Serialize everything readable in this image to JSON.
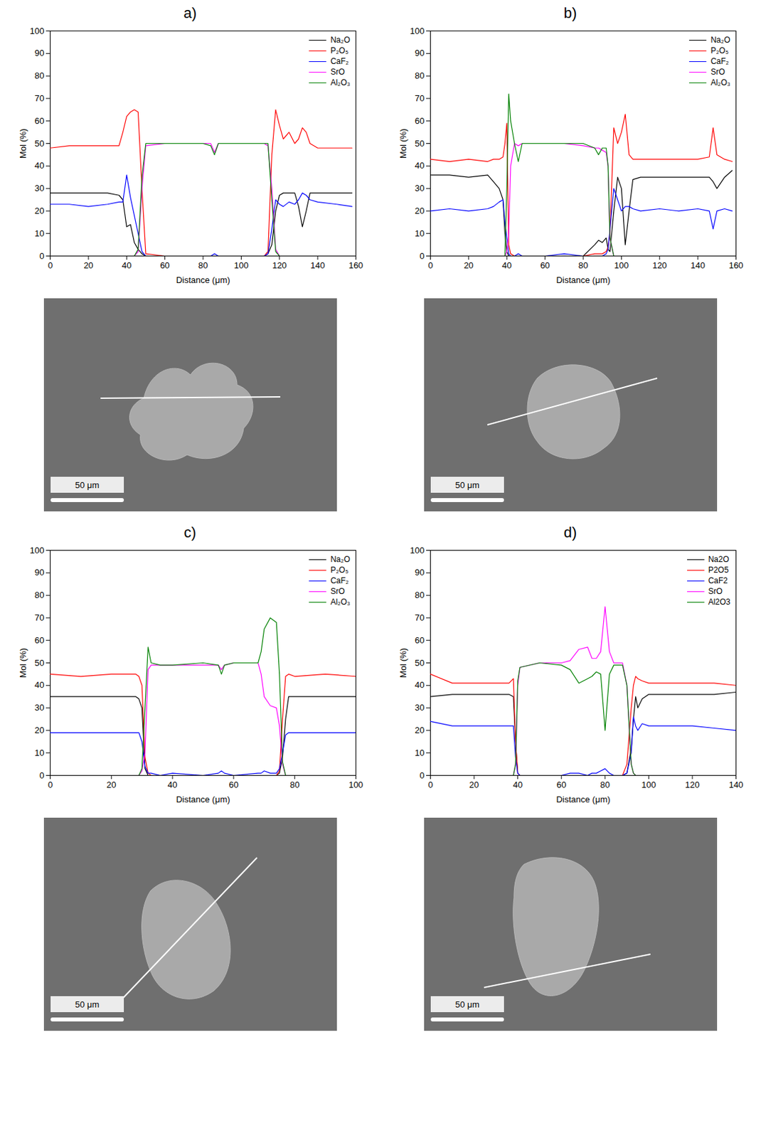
{
  "chart_data": [
    {
      "type": "line",
      "title": "a)",
      "xlabel": "Distance (μm)",
      "ylabel": "Mol (%)",
      "legend": "top-right",
      "xlim": [
        0,
        160
      ],
      "xticks": [
        0,
        20,
        40,
        60,
        80,
        100,
        120,
        140,
        160
      ],
      "ylim": [
        0,
        100
      ],
      "yticks": [
        0,
        10,
        20,
        30,
        40,
        50,
        60,
        70,
        80,
        90,
        100
      ],
      "x": [
        0,
        10,
        20,
        30,
        36,
        38,
        40,
        42,
        44,
        46,
        48,
        50,
        60,
        70,
        80,
        84,
        86,
        88,
        100,
        110,
        112,
        114,
        116,
        118,
        120,
        122,
        125,
        128,
        130,
        132,
        134,
        136,
        140,
        150,
        158
      ],
      "series": [
        {
          "name": "Na₂O",
          "color": "#000000",
          "values": [
            28,
            28,
            28,
            28,
            27,
            25,
            13,
            14,
            6,
            3,
            1,
            0,
            0,
            0,
            0,
            0,
            0,
            0,
            0,
            0,
            0,
            1,
            5,
            20,
            27,
            28,
            28,
            28,
            22,
            13,
            20,
            28,
            28,
            28,
            28
          ]
        },
        {
          "name": "P₂O₅",
          "color": "#ff0000",
          "values": [
            48,
            49,
            49,
            49,
            49,
            55,
            62,
            64,
            65,
            64,
            30,
            1,
            0,
            0,
            0,
            0,
            0,
            0,
            0,
            0,
            0,
            2,
            45,
            65,
            58,
            52,
            55,
            50,
            52,
            57,
            55,
            50,
            48,
            48,
            48
          ]
        },
        {
          "name": "CaF₂",
          "color": "#0000ff",
          "values": [
            23,
            23,
            22,
            23,
            24,
            24,
            36,
            26,
            18,
            10,
            2,
            0,
            0,
            0,
            0,
            0,
            1,
            0,
            0,
            0,
            0,
            1,
            12,
            25,
            23,
            22,
            24,
            23,
            25,
            28,
            27,
            25,
            24,
            23,
            22
          ]
        },
        {
          "name": "SrO",
          "color": "#ff00ff",
          "values": [
            0,
            0,
            0,
            0,
            0,
            0,
            0,
            0,
            0,
            2,
            30,
            49,
            50,
            50,
            50,
            50,
            46,
            50,
            50,
            50,
            50,
            49,
            30,
            3,
            0,
            0,
            0,
            0,
            0,
            0,
            0,
            0,
            0,
            0,
            0
          ]
        },
        {
          "name": "Al₂O₃",
          "color": "#008000",
          "values": [
            0,
            0,
            0,
            0,
            0,
            0,
            0,
            0,
            0,
            3,
            35,
            50,
            50,
            50,
            50,
            49,
            45,
            50,
            50,
            50,
            50,
            50,
            25,
            2,
            0,
            0,
            0,
            0,
            0,
            0,
            0,
            0,
            0,
            0,
            0
          ]
        }
      ]
    },
    {
      "type": "line",
      "title": "b)",
      "xlabel": "Distance (μm)",
      "ylabel": "Mol (%)",
      "legend": "top-right",
      "xlim": [
        0,
        160
      ],
      "xticks": [
        0,
        20,
        40,
        60,
        80,
        100,
        120,
        140,
        160
      ],
      "ylim": [
        0,
        100
      ],
      "yticks": [
        0,
        10,
        20,
        30,
        40,
        50,
        60,
        70,
        80,
        90,
        100
      ],
      "x": [
        0,
        10,
        20,
        30,
        33,
        36,
        38,
        39,
        40,
        41,
        42,
        44,
        46,
        48,
        60,
        70,
        80,
        86,
        88,
        90,
        92,
        93,
        94,
        96,
        98,
        100,
        102,
        104,
        106,
        110,
        120,
        130,
        140,
        146,
        148,
        150,
        154,
        158
      ],
      "series": [
        {
          "name": "Na₂O",
          "color": "#000000",
          "values": [
            36,
            36,
            35,
            36,
            33,
            30,
            25,
            10,
            2,
            0,
            0,
            0,
            0,
            0,
            0,
            0,
            0,
            5,
            7,
            6,
            8,
            3,
            2,
            20,
            35,
            30,
            5,
            20,
            34,
            35,
            35,
            35,
            35,
            35,
            33,
            30,
            35,
            38
          ]
        },
        {
          "name": "P₂O₅",
          "color": "#ff0000",
          "values": [
            43,
            42,
            43,
            42,
            43,
            43,
            44,
            50,
            59,
            5,
            1,
            0,
            0,
            0,
            0,
            0,
            0,
            1,
            1,
            1,
            2,
            4,
            10,
            57,
            50,
            55,
            63,
            45,
            43,
            43,
            43,
            43,
            43,
            44,
            57,
            45,
            43,
            42
          ]
        },
        {
          "name": "CaF₂",
          "color": "#0000ff",
          "values": [
            20,
            21,
            20,
            21,
            22,
            24,
            25,
            15,
            8,
            1,
            0,
            0,
            1,
            0,
            0,
            1,
            0,
            0,
            0,
            0,
            1,
            3,
            12,
            30,
            25,
            20,
            22,
            22,
            21,
            20,
            21,
            20,
            21,
            20,
            12,
            20,
            21,
            20
          ]
        },
        {
          "name": "SrO",
          "color": "#ff00ff",
          "values": [
            0,
            0,
            0,
            0,
            0,
            0,
            0,
            0,
            2,
            10,
            40,
            50,
            49,
            50,
            50,
            50,
            49,
            48,
            48,
            47,
            46,
            40,
            8,
            0,
            0,
            0,
            0,
            0,
            0,
            0,
            0,
            0,
            0,
            0,
            0,
            0,
            0,
            0
          ]
        },
        {
          "name": "Al₂O₃",
          "color": "#008000",
          "values": [
            0,
            0,
            0,
            0,
            0,
            0,
            0,
            0,
            30,
            72,
            60,
            50,
            42,
            50,
            50,
            50,
            50,
            48,
            45,
            48,
            48,
            40,
            8,
            0,
            0,
            0,
            0,
            0,
            0,
            0,
            0,
            0,
            0,
            0,
            0,
            0,
            0,
            0
          ]
        }
      ]
    },
    {
      "type": "line",
      "title": "c)",
      "xlabel": "Distance (μm)",
      "ylabel": "Mol (%)",
      "legend": "top-right",
      "xlim": [
        0,
        100
      ],
      "xticks": [
        0,
        20,
        40,
        60,
        80,
        100
      ],
      "ylim": [
        0,
        100
      ],
      "yticks": [
        0,
        10,
        20,
        30,
        40,
        50,
        60,
        70,
        80,
        90,
        100
      ],
      "x": [
        0,
        10,
        20,
        28,
        29,
        30,
        31,
        32,
        33,
        36,
        40,
        50,
        55,
        56,
        57,
        60,
        68,
        69,
        70,
        72,
        74,
        75,
        76,
        77,
        78,
        80,
        90,
        100
      ],
      "series": [
        {
          "name": "Na₂O",
          "color": "#000000",
          "values": [
            35,
            35,
            35,
            35,
            34,
            30,
            3,
            0,
            0,
            0,
            0,
            0,
            0,
            0,
            0,
            0,
            0,
            0,
            0,
            0,
            0,
            1,
            8,
            25,
            35,
            35,
            35,
            35
          ]
        },
        {
          "name": "P₂O₅",
          "color": "#ff0000",
          "values": [
            45,
            44,
            45,
            45,
            44,
            40,
            8,
            1,
            0,
            0,
            0,
            0,
            0,
            0,
            0,
            0,
            0,
            0,
            0,
            0,
            0,
            2,
            25,
            44,
            45,
            44,
            45,
            44
          ]
        },
        {
          "name": "CaF₂",
          "color": "#0000ff",
          "values": [
            19,
            19,
            19,
            19,
            19,
            15,
            4,
            1,
            1,
            0,
            1,
            0,
            1,
            2,
            1,
            0,
            1,
            1,
            2,
            1,
            1,
            3,
            10,
            18,
            19,
            19,
            19,
            19
          ]
        },
        {
          "name": "SrO",
          "color": "#ff00ff",
          "values": [
            0,
            0,
            0,
            0,
            0,
            2,
            10,
            47,
            49,
            49,
            49,
            49,
            49,
            47,
            49,
            50,
            50,
            45,
            35,
            31,
            30,
            22,
            5,
            0,
            0,
            0,
            0,
            0
          ]
        },
        {
          "name": "Al₂O₃",
          "color": "#008000",
          "values": [
            0,
            0,
            0,
            0,
            0,
            3,
            30,
            57,
            50,
            49,
            49,
            50,
            49,
            45,
            49,
            50,
            50,
            55,
            65,
            70,
            68,
            45,
            6,
            0,
            0,
            0,
            0,
            0
          ]
        }
      ]
    },
    {
      "type": "line",
      "title": "d)",
      "xlabel": "Distance (μm)",
      "ylabel": "Mol (%)",
      "legend": "top-right",
      "xlim": [
        0,
        140
      ],
      "xticks": [
        0,
        20,
        40,
        60,
        80,
        100,
        120,
        140
      ],
      "ylim": [
        0,
        100
      ],
      "yticks": [
        0,
        10,
        20,
        30,
        40,
        50,
        60,
        70,
        80,
        90,
        100
      ],
      "x": [
        0,
        10,
        20,
        30,
        36,
        38,
        39,
        40,
        41,
        50,
        60,
        64,
        68,
        72,
        74,
        76,
        78,
        80,
        82,
        84,
        88,
        90,
        92,
        93,
        94,
        95,
        97,
        100,
        110,
        120,
        130,
        140
      ],
      "series": [
        {
          "name": "Na2O",
          "color": "#000000",
          "values": [
            35,
            36,
            36,
            36,
            36,
            35,
            15,
            1,
            0,
            0,
            0,
            0,
            0,
            0,
            0,
            0,
            0,
            0,
            0,
            0,
            0,
            1,
            12,
            25,
            35,
            30,
            34,
            36,
            36,
            36,
            36,
            37
          ]
        },
        {
          "name": "P2O5",
          "color": "#ff0000",
          "values": [
            45,
            41,
            41,
            41,
            41,
            43,
            15,
            1,
            0,
            0,
            0,
            0,
            0,
            0,
            0,
            0,
            0,
            0,
            0,
            0,
            0,
            5,
            30,
            40,
            44,
            43,
            42,
            41,
            41,
            41,
            41,
            40
          ]
        },
        {
          "name": "CaF2",
          "color": "#0000ff",
          "values": [
            24,
            22,
            22,
            22,
            22,
            22,
            8,
            1,
            0,
            0,
            0,
            1,
            1,
            0,
            1,
            1,
            2,
            3,
            1,
            0,
            0,
            1,
            10,
            26,
            22,
            20,
            23,
            22,
            22,
            22,
            21,
            20
          ]
        },
        {
          "name": "SrO",
          "color": "#ff00ff",
          "values": [
            0,
            0,
            0,
            0,
            0,
            0,
            5,
            40,
            48,
            50,
            50,
            51,
            56,
            57,
            52,
            52,
            55,
            75,
            55,
            50,
            50,
            40,
            5,
            1,
            0,
            0,
            0,
            0,
            0,
            0,
            0,
            0
          ]
        },
        {
          "name": "Al2O3",
          "color": "#008000",
          "values": [
            0,
            0,
            0,
            0,
            0,
            0,
            5,
            42,
            48,
            50,
            49,
            47,
            41,
            43,
            44,
            46,
            45,
            20,
            45,
            49,
            49,
            40,
            5,
            1,
            0,
            0,
            0,
            0,
            0,
            0,
            0,
            0
          ]
        }
      ]
    }
  ],
  "sem_images": [
    {
      "scale_bar": "50 μm"
    },
    {
      "scale_bar": "50 μm"
    },
    {
      "scale_bar": "50 μm"
    },
    {
      "scale_bar": "50 μm"
    }
  ]
}
